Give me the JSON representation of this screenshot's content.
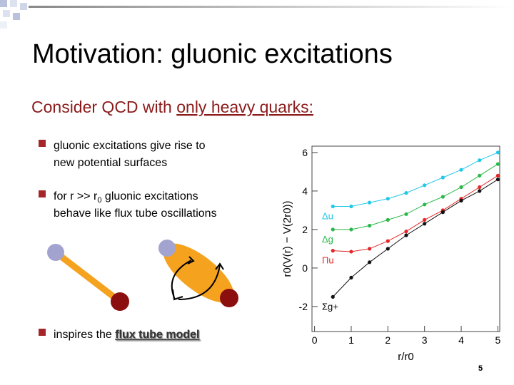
{
  "title": "Motivation: gluonic excitations",
  "subtitle": {
    "lead": "Consider QCD with ",
    "underlined": "only heavy quarks:"
  },
  "bullets": [
    {
      "lines": [
        "gluonic excitations give rise to",
        "new potential surfaces"
      ]
    },
    {
      "parts": [
        "for r >> r",
        "0",
        " gluonic excitations"
      ],
      "line2": "behave like flux tube oscillations"
    },
    {
      "lead": "inspires the ",
      "link": "flux tube model"
    }
  ],
  "slide_number": "5",
  "figure": {
    "type": "scatter",
    "xlabel": "r/r0",
    "ylabel": "r0(V(r) − V(2r0))",
    "xlim": [
      -0.07,
      5.05
    ],
    "ylim": [
      -3.3,
      6.33
    ],
    "xticks": [
      0,
      1,
      2,
      3,
      4,
      5
    ],
    "yticks": [
      -2,
      0,
      2,
      4,
      6
    ],
    "x": [
      0.5,
      1,
      1.5,
      2,
      2.5,
      3,
      3.5,
      4,
      4.5,
      5
    ],
    "series": [
      {
        "name": "Δu",
        "color": "#22c8e8",
        "values": [
          3.2,
          3.2,
          3.4,
          3.6,
          3.9,
          4.3,
          4.7,
          5.1,
          5.6,
          6.0
        ]
      },
      {
        "name": "Δg",
        "color": "#2ab84a",
        "values": [
          2.0,
          2.0,
          2.2,
          2.5,
          2.8,
          3.3,
          3.7,
          4.2,
          4.8,
          5.4
        ]
      },
      {
        "name": "Πu",
        "color": "#e02828",
        "values": [
          0.9,
          0.85,
          1.0,
          1.4,
          1.9,
          2.5,
          3.0,
          3.6,
          4.2,
          4.8
        ]
      },
      {
        "name": "Σg+",
        "color": "#111111",
        "values": [
          -1.5,
          -0.5,
          0.3,
          1.0,
          1.7,
          2.3,
          2.9,
          3.5,
          4.0,
          4.6
        ]
      }
    ]
  }
}
